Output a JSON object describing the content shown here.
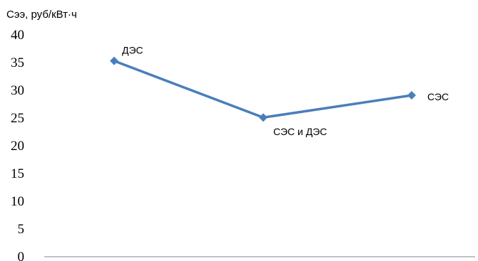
{
  "chart_data": {
    "type": "line",
    "title": "",
    "xlabel": "",
    "ylabel": "Сээ, руб/кВт·ч",
    "ylim": [
      0,
      40
    ],
    "yticks": [
      0,
      5,
      10,
      15,
      20,
      25,
      30,
      35,
      40
    ],
    "grid": false,
    "categories": [
      "ДЭС",
      "СЭС и ДЭС",
      "СЭС"
    ],
    "series": [
      {
        "values": [
          35.3,
          25.1,
          29.1
        ],
        "labels": [
          "ДЭС",
          "СЭС и ДЭС",
          "СЭС"
        ],
        "color": "#4a7ebb"
      }
    ]
  }
}
